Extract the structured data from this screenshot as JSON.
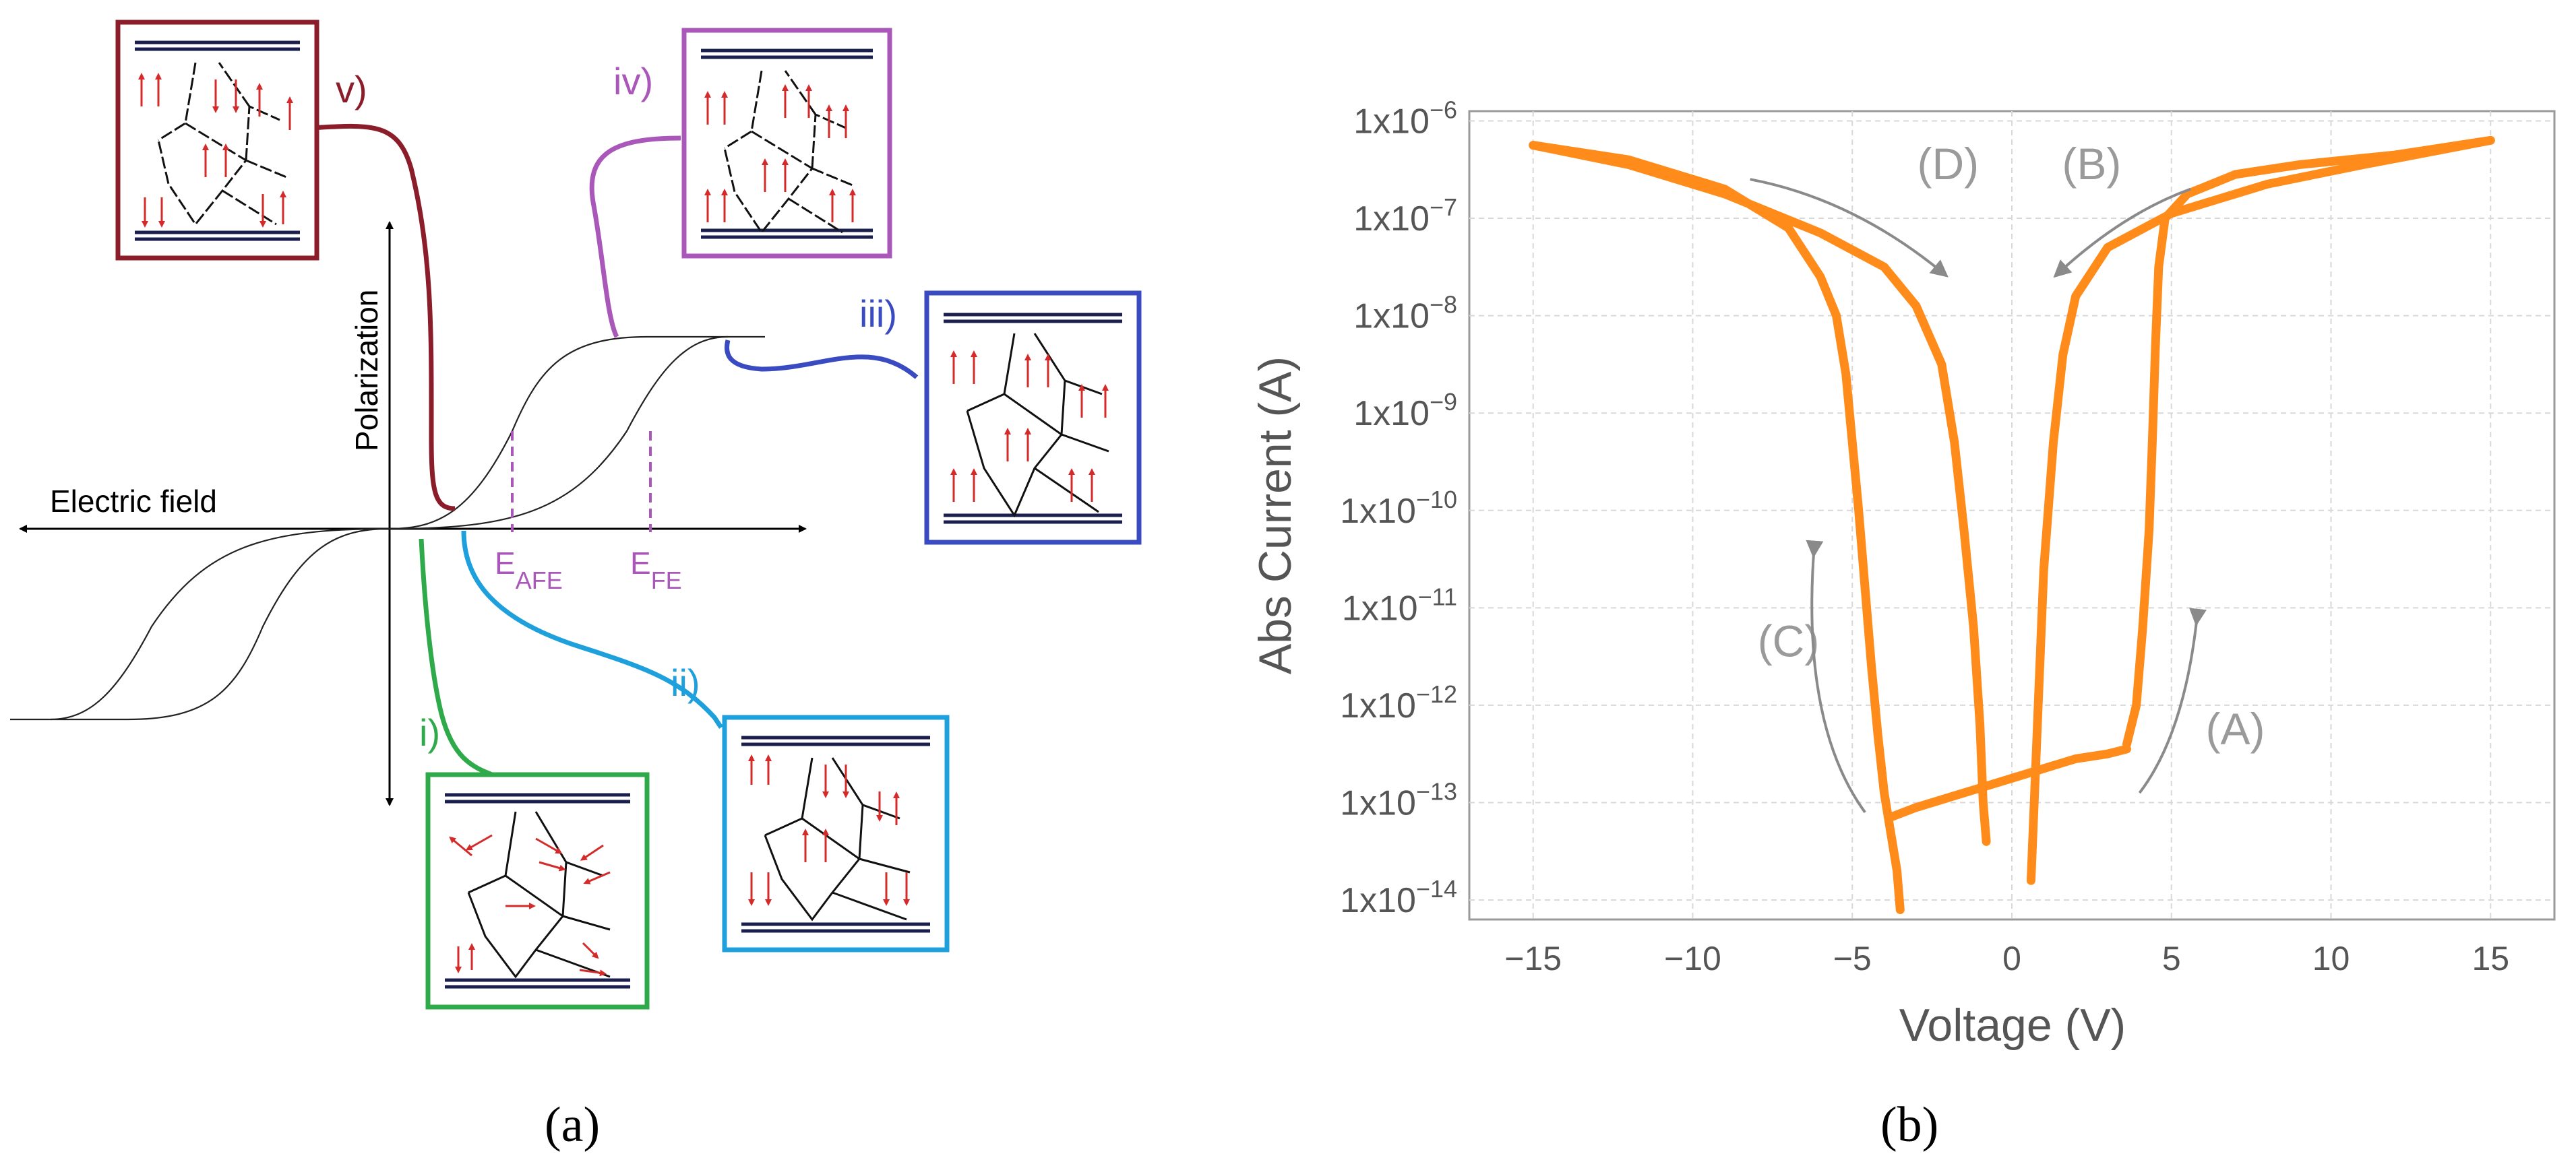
{
  "panel_a": {
    "caption": "(a)",
    "axis_x_label": "Electric field",
    "axis_y_label": "Polarization",
    "e_afe": {
      "main": "E",
      "sub": "AFE"
    },
    "e_fe": {
      "main": "E",
      "sub": "FE"
    },
    "states": [
      {
        "id": "i",
        "label": "i)",
        "color": "#2eaa4a"
      },
      {
        "id": "ii",
        "label": "ii)",
        "color": "#1ea0dc"
      },
      {
        "id": "iii",
        "label": "iii)",
        "color": "#3a4ac0"
      },
      {
        "id": "iv",
        "label": "iv)",
        "color": "#a957b8"
      },
      {
        "id": "v",
        "label": "v)",
        "color": "#8b1d2a"
      }
    ],
    "colors": {
      "arrow_red": "#d42a2a",
      "electrode": "#1a1f4e",
      "dashed": "#a957b8"
    }
  },
  "panel_b": {
    "caption": "(b)",
    "chart_data": {
      "type": "line",
      "xlabel": "Voltage (V)",
      "ylabel": "Abs Current (A)",
      "xlim": [
        -17,
        17
      ],
      "ylim_exp": [
        -14.2,
        -5.9
      ],
      "xticks": [
        -15,
        -10,
        -5,
        0,
        5,
        10,
        15
      ],
      "yticks_exp": [
        -6,
        -7,
        -8,
        -9,
        -10,
        -11,
        -12,
        -13,
        -14
      ],
      "ytick_base": "1x10",
      "grid": true,
      "color": "#ff8c1a",
      "series": [
        {
          "name": "sweep_lower_left",
          "x": [
            -15,
            -12,
            -9,
            -7,
            -6,
            -5.5,
            -5.2,
            -5.0,
            -4.8,
            -4.6,
            -4.4,
            -4.2,
            -4.0,
            -3.8,
            -3.6,
            -3.5
          ],
          "y_exp": [
            -6.25,
            -6.4,
            -6.7,
            -7.1,
            -7.6,
            -8.0,
            -8.6,
            -9.3,
            -10.0,
            -10.8,
            -11.6,
            -12.3,
            -12.9,
            -13.3,
            -13.7,
            -14.1
          ]
        },
        {
          "name": "sweep_upper_left",
          "x": [
            -15,
            -12,
            -9,
            -6,
            -4,
            -3,
            -2.2,
            -1.8,
            -1.5,
            -1.2,
            -1.0,
            -0.9,
            -0.8
          ],
          "y_exp": [
            -6.25,
            -6.45,
            -6.75,
            -7.15,
            -7.5,
            -7.9,
            -8.5,
            -9.3,
            -10.2,
            -11.2,
            -12.2,
            -13.0,
            -13.4
          ]
        },
        {
          "name": "sweep_low_flat",
          "x": [
            -3.8,
            -3.0,
            -2.0,
            -1.0,
            0,
            1.0,
            2.0,
            3.0,
            3.6
          ],
          "y_exp": [
            -13.15,
            -13.05,
            -12.95,
            -12.85,
            -12.75,
            -12.65,
            -12.55,
            -12.5,
            -12.45
          ]
        },
        {
          "name": "sweep_lower_right",
          "x": [
            3.6,
            3.9,
            4.1,
            4.3,
            4.4,
            4.5,
            4.6,
            4.8,
            5.5,
            7,
            9,
            12,
            15
          ],
          "y_exp": [
            -12.4,
            -12.0,
            -11.2,
            -10.2,
            -9.3,
            -8.3,
            -7.5,
            -7.0,
            -6.75,
            -6.55,
            -6.45,
            -6.35,
            -6.2
          ]
        },
        {
          "name": "sweep_upper_right",
          "x": [
            0.6,
            0.8,
            1.0,
            1.3,
            1.6,
            2.0,
            3.0,
            5,
            8,
            11,
            15
          ],
          "y_exp": [
            -13.8,
            -12.2,
            -10.6,
            -9.3,
            -8.4,
            -7.8,
            -7.3,
            -6.95,
            -6.65,
            -6.45,
            -6.2
          ]
        }
      ],
      "annotations": [
        {
          "label": "(A)",
          "x": 7.0,
          "y_exp": -12.4
        },
        {
          "label": "(B)",
          "x": 2.5,
          "y_exp": -6.6
        },
        {
          "label": "(C)",
          "x": -7.0,
          "y_exp": -11.5
        },
        {
          "label": "(D)",
          "x": -2.0,
          "y_exp": -6.6
        }
      ]
    }
  }
}
